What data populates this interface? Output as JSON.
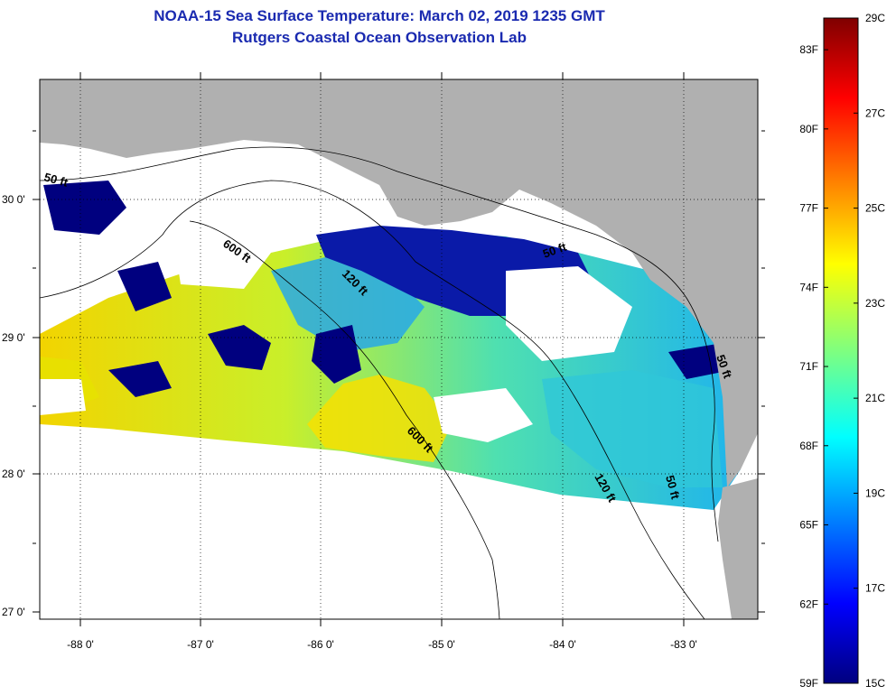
{
  "header": {
    "title": "NOAA-15 Sea Surface Temperature:  March 02, 2019 1235 GMT",
    "subtitle": "Rutgers Coastal Ocean Observation Lab"
  },
  "map": {
    "lat_labels": [
      "30 0'",
      "29 0'",
      "28 0'",
      "27 0'"
    ],
    "lon_labels": [
      "-88 0'",
      "-87 0'",
      "-86 0'",
      "-85 0'",
      "-84 0'",
      "-83 0'"
    ],
    "isobath_labels": [
      "50 ft",
      "600 ft",
      "120 ft",
      "50 ft",
      "600 ft",
      "120 ft",
      "50 ft",
      "50 ft"
    ],
    "colors": {
      "land": "#b0b0b0",
      "cloud": "#ffffff",
      "cold": "#00007f",
      "warm": "#ffd200"
    }
  },
  "colorbar": {
    "fahrenheit": [
      "83F",
      "80F",
      "77F",
      "74F",
      "71F",
      "68F",
      "65F",
      "62F",
      "59F"
    ],
    "celsius": [
      "29C",
      "27C",
      "25C",
      "23C",
      "21C",
      "19C",
      "17C",
      "15C"
    ],
    "range_c": [
      15,
      29
    ],
    "range_f": [
      59,
      84.2
    ]
  }
}
